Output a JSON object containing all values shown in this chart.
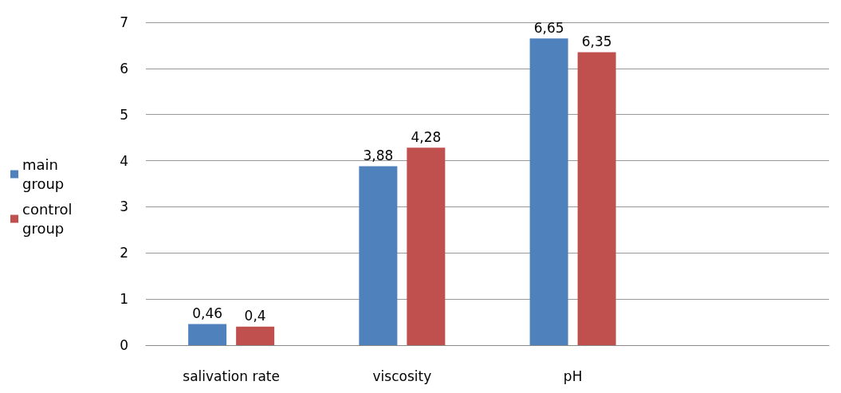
{
  "chart_data": {
    "type": "bar",
    "categories": [
      "salivation rate",
      "viscosity",
      "pH",
      null
    ],
    "series": [
      {
        "name": "main group",
        "color": "#4f81bd",
        "values": [
          0.46,
          3.88,
          6.65,
          null
        ],
        "value_labels": [
          "0,46",
          "3,88",
          "6,65",
          null
        ]
      },
      {
        "name": "control group",
        "color": "#c0504d",
        "values": [
          0.4,
          4.28,
          6.35,
          null
        ],
        "value_labels": [
          "0,4",
          "4,28",
          "6,35",
          null
        ]
      }
    ],
    "ylim": [
      0,
      7
    ],
    "yticks": [
      0,
      1,
      2,
      3,
      4,
      5,
      6,
      7
    ],
    "grid": "y",
    "legend": "left"
  }
}
